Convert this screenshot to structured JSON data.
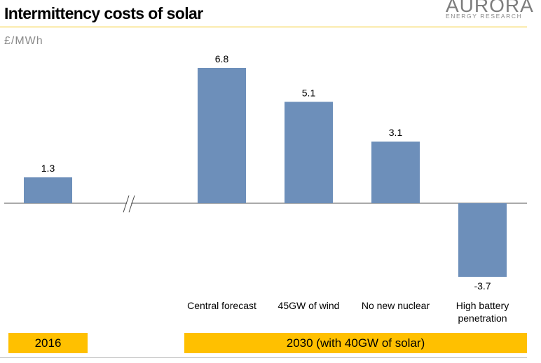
{
  "title": "Intermittency costs of solar",
  "logo": {
    "word": "AURORA",
    "sub": "ENERGY RESEARCH"
  },
  "unit_label": "£/MWh",
  "periods": [
    "2016",
    "2030 (with 40GW of solar)"
  ],
  "colors": {
    "bar": "#6d8fba",
    "period_band": "#ffc000",
    "title_rule": "#f1c40f"
  },
  "chart_data": {
    "type": "bar",
    "title": "Intermittency costs of solar",
    "ylabel": "£/MWh",
    "categories": [
      "",
      "Central forecast",
      "45GW of wind",
      "No new nuclear",
      "High battery penetration"
    ],
    "category_lines": [
      [
        ""
      ],
      [
        "Central forecast"
      ],
      [
        "45GW of wind"
      ],
      [
        "No new nuclear"
      ],
      [
        "High battery",
        "penetration"
      ]
    ],
    "values": [
      1.3,
      6.8,
      5.1,
      3.1,
      -3.7
    ],
    "value_labels": [
      "1.3",
      "6.8",
      "5.1",
      "3.1",
      "-3.7"
    ],
    "axis_break": "//",
    "grid": false,
    "legend": "none"
  }
}
